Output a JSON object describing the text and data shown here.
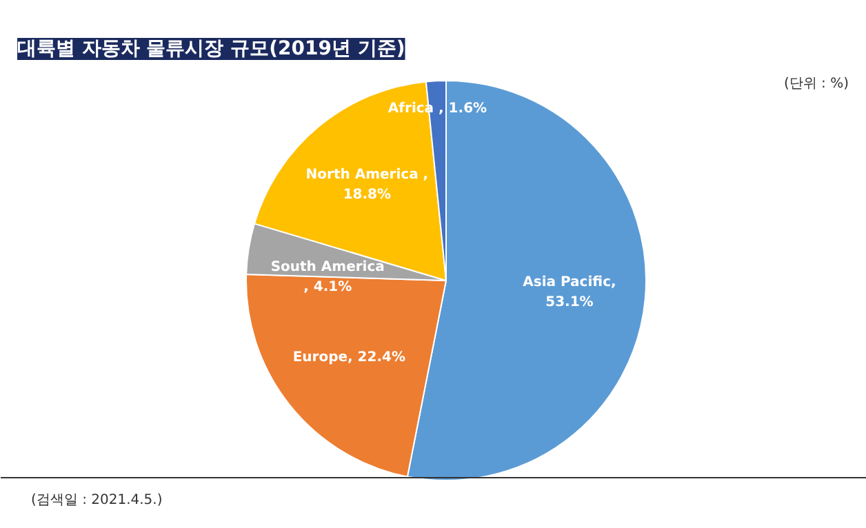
{
  "chart_data": {
    "type": "pie",
    "title": "대륙별 자동차 물류시장 규모(2019년 기준)",
    "categories": [
      "Asia Pacific",
      "Europe",
      "South America",
      "North America",
      "Africa"
    ],
    "values": [
      53.1,
      22.4,
      4.1,
      18.8,
      1.6
    ],
    "colors": [
      "#5b9bd5",
      "#ed7d31",
      "#a5a5a5",
      "#ffc000",
      "#4472c4"
    ],
    "value_labels": [
      ",\n53.1%",
      ", 22.4%",
      "\n, 4.1%",
      " ,\n18.8%",
      " , 1.6%"
    ],
    "annotations": [
      "(단위 : %)",
      "(검색일 : 2021.4.5.)"
    ]
  }
}
